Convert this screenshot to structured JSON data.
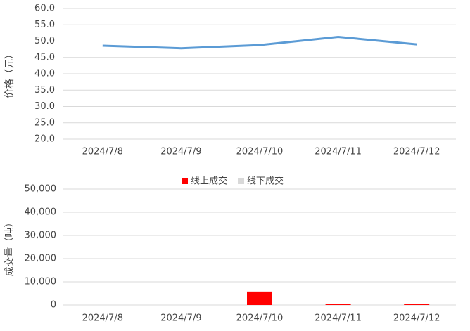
{
  "chart_data": [
    {
      "type": "line",
      "ylabel": "价格（元）",
      "categories": [
        "2024/7/8",
        "2024/7/9",
        "2024/7/10",
        "2024/7/11",
        "2024/7/12"
      ],
      "series": [
        {
          "color": "#5b9bd5",
          "values": [
            48.6,
            47.8,
            48.8,
            51.3,
            49.0
          ]
        }
      ],
      "ylim": [
        20,
        60
      ],
      "yticks": [
        {
          "value": 20,
          "label": "20.0"
        },
        {
          "value": 25,
          "label": "25.0"
        },
        {
          "value": 30,
          "label": "30.0"
        },
        {
          "value": 35,
          "label": "35.0"
        },
        {
          "value": 40,
          "label": "40.0"
        },
        {
          "value": 45,
          "label": "45.0"
        },
        {
          "value": 50,
          "label": "50.0"
        },
        {
          "value": 55,
          "label": "55.0"
        },
        {
          "value": 60,
          "label": "60.0"
        }
      ],
      "grid": true
    },
    {
      "type": "bar",
      "ylabel": "成交量（吨）",
      "categories": [
        "2024/7/8",
        "2024/7/9",
        "2024/7/10",
        "2024/7/11",
        "2024/7/12"
      ],
      "series": [
        {
          "name": "线上成交",
          "color": "#ff0000",
          "values": [
            0,
            0,
            5800,
            300,
            300
          ]
        },
        {
          "name": "线下成交",
          "color": "#d9d9d9",
          "values": [
            0,
            0,
            0,
            0,
            0
          ]
        }
      ],
      "ylim": [
        0,
        50000
      ],
      "yticks": [
        0,
        {
          "value": 10000,
          "label": "10,000"
        },
        {
          "value": 20000,
          "label": "20,000"
        },
        {
          "value": 30000,
          "label": "30,000"
        },
        {
          "value": 40000,
          "label": "40,000"
        },
        {
          "value": 50000,
          "label": "50,000"
        }
      ],
      "grid": true,
      "legend": "top"
    }
  ]
}
